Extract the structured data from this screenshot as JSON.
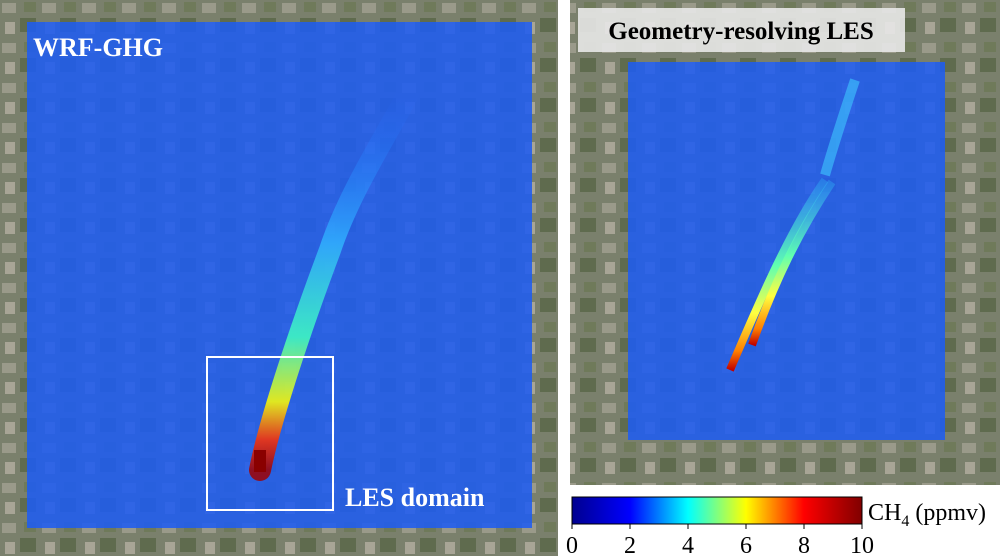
{
  "panels": [
    {
      "label": "WRF-GHG",
      "annotation": "LES domain"
    },
    {
      "label": "Geometry-resolving LES"
    }
  ],
  "colorbar": {
    "label": {
      "base": "CH",
      "subscript": "4",
      "unit": "(ppmv)"
    },
    "lim": [
      0,
      10
    ],
    "ticks": [
      0,
      2,
      4,
      6,
      8,
      10
    ],
    "colors": [
      "#00008f",
      "#0000ff",
      "#00ffff",
      "#ffff00",
      "#ff0000",
      "#800000"
    ]
  }
}
